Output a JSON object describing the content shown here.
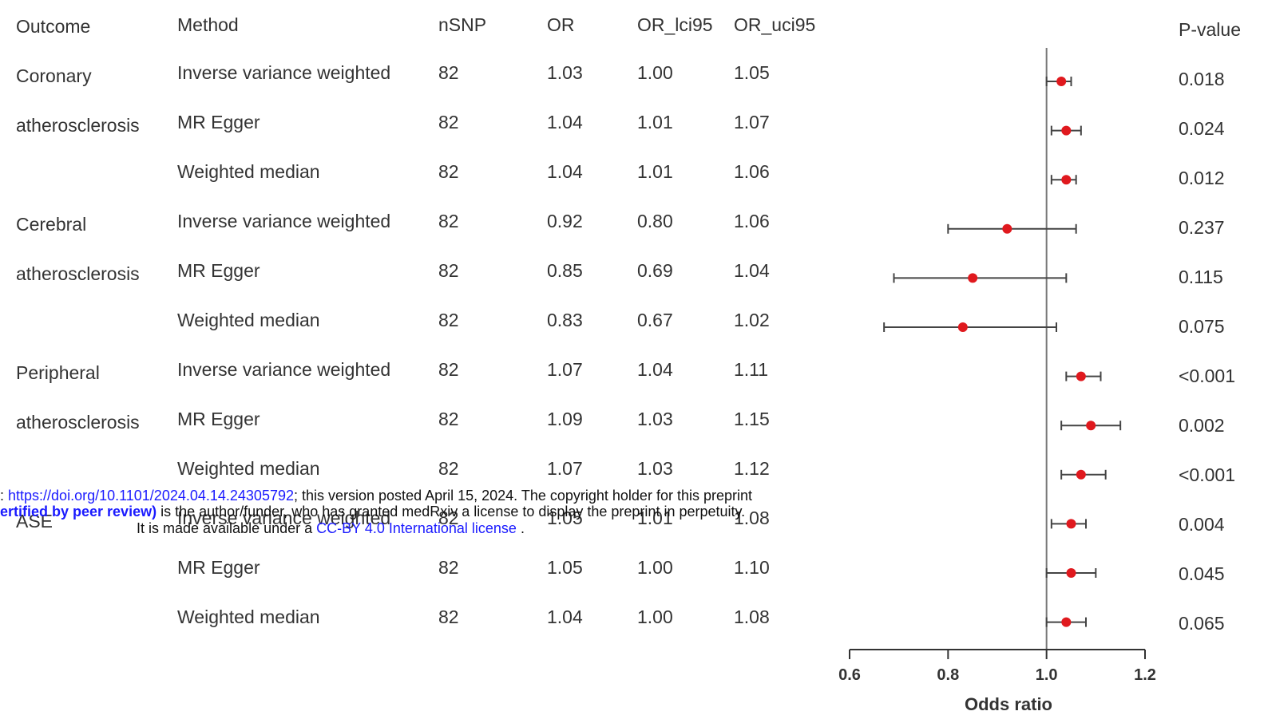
{
  "headers": {
    "outcome": "Outcome",
    "method": "Method",
    "nsnp": "nSNP",
    "or": "OR",
    "or_lci95": "OR_lci95",
    "or_uci95": "OR_uci95",
    "pvalue": "P-value"
  },
  "rows": [
    {
      "outcome": "Coronary",
      "method": "Inverse variance weighted",
      "nsnp": "82",
      "or": "1.03",
      "lci": "1.00",
      "uci": "1.05",
      "p": "0.018"
    },
    {
      "outcome": "atherosclerosis",
      "method": "MR Egger",
      "nsnp": "82",
      "or": "1.04",
      "lci": "1.01",
      "uci": "1.07",
      "p": "0.024"
    },
    {
      "outcome": "",
      "method": "Weighted median",
      "nsnp": "82",
      "or": "1.04",
      "lci": "1.01",
      "uci": "1.06",
      "p": "0.012"
    },
    {
      "outcome": "Cerebral",
      "method": "Inverse variance weighted",
      "nsnp": "82",
      "or": "0.92",
      "lci": "0.80",
      "uci": "1.06",
      "p": "0.237"
    },
    {
      "outcome": "atherosclerosis",
      "method": "MR Egger",
      "nsnp": "82",
      "or": "0.85",
      "lci": "0.69",
      "uci": "1.04",
      "p": "0.115"
    },
    {
      "outcome": "",
      "method": "Weighted median",
      "nsnp": "82",
      "or": "0.83",
      "lci": "0.67",
      "uci": "1.02",
      "p": "0.075"
    },
    {
      "outcome": "Peripheral",
      "method": "Inverse variance weighted",
      "nsnp": "82",
      "or": "1.07",
      "lci": "1.04",
      "uci": "1.11",
      "p": "<0.001"
    },
    {
      "outcome": "atherosclerosis",
      "method": "MR Egger",
      "nsnp": "82",
      "or": "1.09",
      "lci": "1.03",
      "uci": "1.15",
      "p": "0.002"
    },
    {
      "outcome": "",
      "method": "Weighted median",
      "nsnp": "82",
      "or": "1.07",
      "lci": "1.03",
      "uci": "1.12",
      "p": "<0.001"
    },
    {
      "outcome": "ASE",
      "method": "Inverse variance weighted",
      "nsnp": "82",
      "or": "1.05",
      "lci": "1.01",
      "uci": "1.08",
      "p": "0.004"
    },
    {
      "outcome": "",
      "method": "MR Egger",
      "nsnp": "82",
      "or": "1.05",
      "lci": "1.00",
      "uci": "1.10",
      "p": "0.045"
    },
    {
      "outcome": "",
      "method": "Weighted median",
      "nsnp": "82",
      "or": "1.04",
      "lci": "1.00",
      "uci": "1.08",
      "p": "0.065"
    }
  ],
  "chart_data": {
    "type": "scatter",
    "subtype": "forest",
    "xlabel": "Odds ratio",
    "xlim": [
      0.6,
      1.2
    ],
    "xticks": [
      "0.6",
      "0.8",
      "1.0",
      "1.2"
    ],
    "reference_line": 1.0,
    "point_color": "#e0191e",
    "points": [
      {
        "or": 1.03,
        "lci": 1.0,
        "uci": 1.05
      },
      {
        "or": 1.04,
        "lci": 1.01,
        "uci": 1.07
      },
      {
        "or": 1.04,
        "lci": 1.01,
        "uci": 1.06
      },
      {
        "or": 0.92,
        "lci": 0.8,
        "uci": 1.06
      },
      {
        "or": 0.85,
        "lci": 0.69,
        "uci": 1.04
      },
      {
        "or": 0.83,
        "lci": 0.67,
        "uci": 1.02
      },
      {
        "or": 1.07,
        "lci": 1.04,
        "uci": 1.11
      },
      {
        "or": 1.09,
        "lci": 1.03,
        "uci": 1.15
      },
      {
        "or": 1.07,
        "lci": 1.03,
        "uci": 1.12
      },
      {
        "or": 1.05,
        "lci": 1.01,
        "uci": 1.08
      },
      {
        "or": 1.05,
        "lci": 1.0,
        "uci": 1.1
      },
      {
        "or": 1.04,
        "lci": 1.0,
        "uci": 1.08
      }
    ]
  },
  "notice": {
    "line1_prefix": ": ",
    "line1_link": "https://doi.org/10.1101/2024.04.14.24305792",
    "line1_suffix": "; this version posted April 15, 2024. The copyright holder for this preprint",
    "line2_bold": "ertified by peer review)",
    "line2_rest": " is the author/funder, who has granted medRxiv a license to display the preprint in perpetuity.",
    "line3_prefix": "It is made available under a ",
    "line3_link": "CC-BY 4.0 International license",
    "line3_suffix": " ."
  }
}
